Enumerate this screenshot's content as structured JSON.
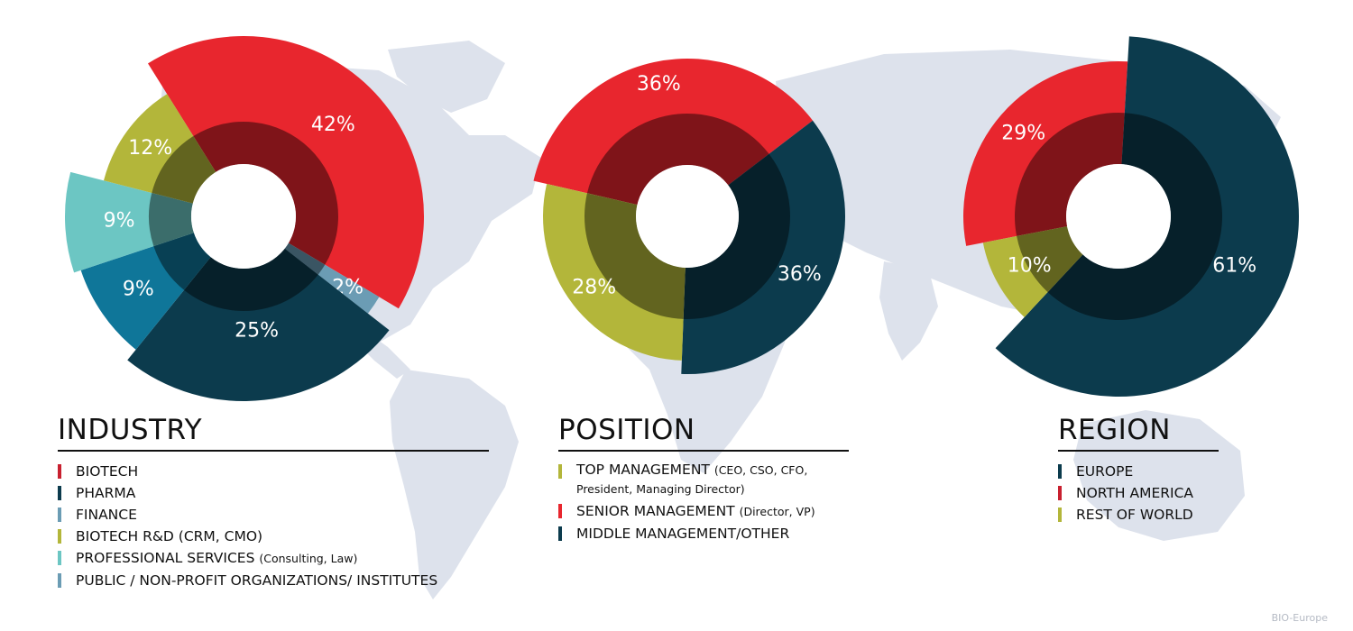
{
  "colors": {
    "map": "#dde2ec",
    "biotech": "#e8262e",
    "pharma": "#0c3b4d",
    "finance": "#6b9cb4",
    "biotech_rd": "#b3b63a",
    "professional": "#6cc6c3",
    "public": "#0f7699",
    "top_mgmt": "#b3b63a",
    "senior_mgmt": "#e8262e",
    "middle_mgmt": "#0c3b4d",
    "europe": "#0c3b4d",
    "north_america": "#e8262e",
    "rest_of_world": "#b3b63a"
  },
  "chart_data": [
    {
      "type": "pie",
      "title": "INDUSTRY",
      "slices": [
        {
          "label": "BIOTECH",
          "value": 42,
          "display": "42%",
          "color": "#e8262e"
        },
        {
          "label": "FINANCE",
          "value": 2,
          "display": "2%",
          "color": "#6b9cb4"
        },
        {
          "label": "PHARMA",
          "value": 25,
          "display": "25%",
          "color": "#0c3b4d"
        },
        {
          "label": "PUBLIC / NON-PROFIT ORGANIZATIONS/ INSTITUTES",
          "value": 9,
          "display": "9%",
          "color": "#0f7699"
        },
        {
          "label": "PROFESSIONAL SERVICES (Consulting, Law)",
          "value": 9,
          "display": "9%",
          "color": "#6cc6c3"
        },
        {
          "label": "BIOTECH R&D (CRM, CMO)",
          "value": 12,
          "display": "12%",
          "color": "#b3b63a"
        }
      ]
    },
    {
      "type": "pie",
      "title": "POSITION",
      "slices": [
        {
          "label": "SENIOR MANAGEMENT",
          "value": 36,
          "display": "36%",
          "color": "#e8262e"
        },
        {
          "label": "MIDDLE MANAGEMENT/OTHER",
          "value": 36,
          "display": "36%",
          "color": "#0c3b4d"
        },
        {
          "label": "TOP MANAGEMENT",
          "value": 28,
          "display": "28%",
          "color": "#b3b63a"
        }
      ]
    },
    {
      "type": "pie",
      "title": "REGION",
      "slices": [
        {
          "label": "NORTH AMERICA",
          "value": 29,
          "display": "29%",
          "color": "#e8262e"
        },
        {
          "label": "EUROPE",
          "value": 61,
          "display": "61%",
          "color": "#0c3b4d"
        },
        {
          "label": "REST OF WORLD",
          "value": 10,
          "display": "10%",
          "color": "#b3b63a"
        }
      ]
    }
  ],
  "legends": {
    "industry": {
      "title": "INDUSTRY",
      "items": [
        {
          "label": "BIOTECH",
          "sub": "",
          "color": "#c8202f"
        },
        {
          "label": "PHARMA",
          "sub": "",
          "color": "#0c3b4d"
        },
        {
          "label": "FINANCE",
          "sub": "",
          "color": "#6b9cb4"
        },
        {
          "label": "BIOTECH R&D (CRM, CMO)",
          "sub": "",
          "color": "#b3b63a"
        },
        {
          "label": "PROFESSIONAL SERVICES",
          "sub": "(Consulting, Law)",
          "color": "#6cc6c3"
        },
        {
          "label": "PUBLIC / NON-PROFIT ORGANIZATIONS/ INSTITUTES",
          "sub": "",
          "color": "#6b9cb4"
        }
      ]
    },
    "position": {
      "title": "POSITION",
      "items": [
        {
          "label": "TOP MANAGEMENT",
          "sub": "(CEO, CSO, CFO, President, Managing Director)",
          "color": "#b3b63a"
        },
        {
          "label": "SENIOR MANAGEMENT",
          "sub": "(Director, VP)",
          "color": "#e8262e"
        },
        {
          "label": "MIDDLE MANAGEMENT/OTHER",
          "sub": "",
          "color": "#0c3b4d"
        }
      ]
    },
    "region": {
      "title": "REGION",
      "items": [
        {
          "label": "EUROPE",
          "sub": "",
          "color": "#0c3b4d"
        },
        {
          "label": "NORTH AMERICA",
          "sub": "",
          "color": "#c8202f"
        },
        {
          "label": "REST OF WORLD",
          "sub": "",
          "color": "#b3b63a"
        }
      ]
    }
  },
  "credit": "BIO-Europe"
}
